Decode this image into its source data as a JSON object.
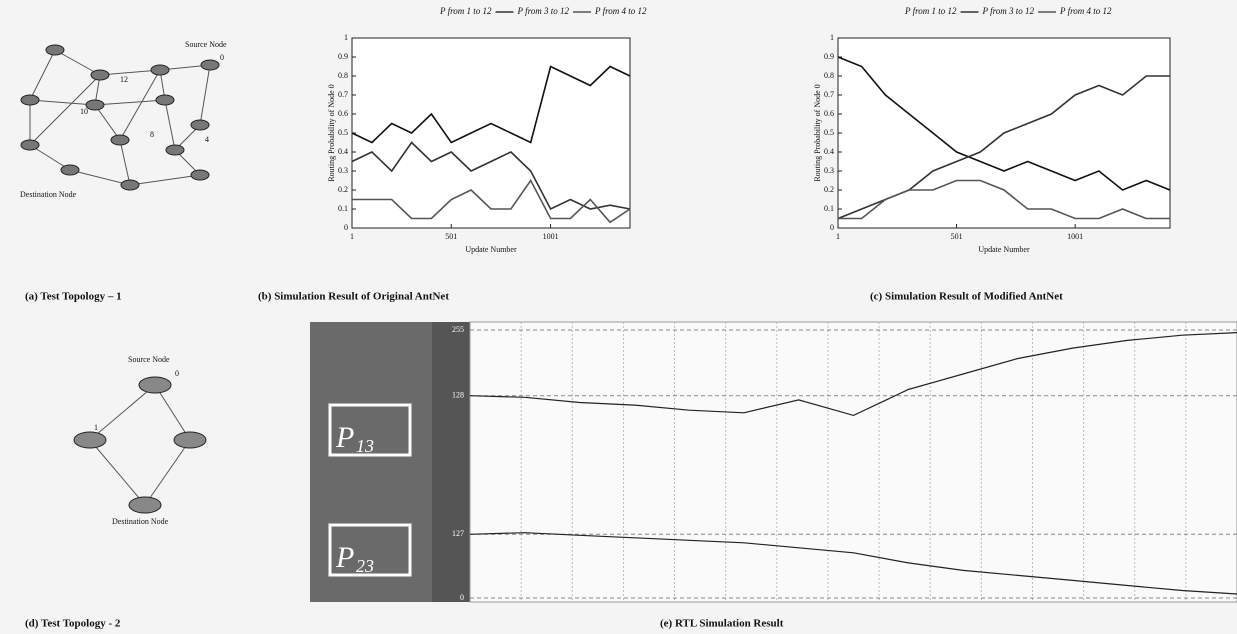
{
  "fig_a": {
    "caption": "(a) Test Topology – 1",
    "labels": [
      "Source Node",
      "0",
      "12",
      "10",
      "8",
      "4",
      "Destination Node"
    ]
  },
  "fig_b": {
    "type": "line",
    "caption": "(b) Simulation Result of Original AntNet",
    "x_label": "Update Number",
    "y_label": "Routing Probability of Node 0",
    "x": [
      1,
      101,
      201,
      301,
      401,
      501,
      601,
      701,
      801,
      901,
      1001,
      1101,
      1201,
      1301,
      1401
    ],
    "xlim": [
      1,
      1401
    ],
    "xticks": [
      1,
      501,
      1001
    ],
    "ylim": [
      0,
      1
    ],
    "yticks": [
      0,
      0.1,
      0.2,
      0.3,
      0.4,
      0.5,
      0.6,
      0.7,
      0.8,
      0.9,
      1
    ],
    "series": [
      {
        "name": "P from 1 to 12",
        "color": "#111111",
        "values": [
          0.5,
          0.45,
          0.55,
          0.5,
          0.6,
          0.45,
          0.5,
          0.55,
          0.5,
          0.45,
          0.85,
          0.8,
          0.75,
          0.85,
          0.8
        ]
      },
      {
        "name": "P from 3 to 12",
        "color": "#333333",
        "values": [
          0.35,
          0.4,
          0.3,
          0.45,
          0.35,
          0.4,
          0.3,
          0.35,
          0.4,
          0.3,
          0.1,
          0.15,
          0.1,
          0.12,
          0.1
        ]
      },
      {
        "name": "P from 4 to 12",
        "color": "#555555",
        "values": [
          0.15,
          0.15,
          0.15,
          0.05,
          0.05,
          0.15,
          0.2,
          0.1,
          0.1,
          0.25,
          0.05,
          0.05,
          0.15,
          0.03,
          0.1
        ]
      }
    ]
  },
  "fig_c": {
    "type": "line",
    "caption": "(c) Simulation Result of Modified AntNet",
    "x_label": "Update Number",
    "y_label": "Routing Probability of Node 0",
    "x": [
      1,
      101,
      201,
      301,
      401,
      501,
      601,
      701,
      801,
      901,
      1001,
      1101,
      1201,
      1301,
      1401
    ],
    "xlim": [
      1,
      1401
    ],
    "xticks": [
      1,
      501,
      1001
    ],
    "ylim": [
      0,
      1
    ],
    "yticks": [
      0,
      0.1,
      0.2,
      0.3,
      0.4,
      0.5,
      0.6,
      0.7,
      0.8,
      0.9,
      1
    ],
    "series": [
      {
        "name": "P from 1 to 12",
        "color": "#111111",
        "values": [
          0.9,
          0.85,
          0.7,
          0.6,
          0.5,
          0.4,
          0.35,
          0.3,
          0.35,
          0.3,
          0.25,
          0.3,
          0.2,
          0.25,
          0.2
        ]
      },
      {
        "name": "P from 3 to 12",
        "color": "#333333",
        "values": [
          0.05,
          0.1,
          0.15,
          0.2,
          0.3,
          0.35,
          0.4,
          0.5,
          0.55,
          0.6,
          0.7,
          0.75,
          0.7,
          0.8,
          0.8
        ]
      },
      {
        "name": "P from 4 to 12",
        "color": "#555555",
        "values": [
          0.05,
          0.05,
          0.15,
          0.2,
          0.2,
          0.25,
          0.25,
          0.2,
          0.1,
          0.1,
          0.05,
          0.05,
          0.1,
          0.05,
          0.05
        ]
      }
    ]
  },
  "fig_d": {
    "caption": "(d) Test Topology - 2",
    "labels": [
      "Source Node",
      "0",
      "1",
      "Destination Node"
    ]
  },
  "fig_e": {
    "caption": "(e) RTL Simulation Result",
    "traces": [
      {
        "label": "P",
        "sub": "13",
        "ylim": [
          0,
          255
        ],
        "yticks": [
          128,
          255
        ],
        "values": [
          128,
          125,
          115,
          110,
          100,
          95,
          120,
          90,
          140,
          170,
          200,
          220,
          235,
          245,
          250
        ]
      },
      {
        "label": "P",
        "sub": "23",
        "ylim": [
          0,
          255
        ],
        "yticks": [
          0,
          127
        ],
        "values": [
          127,
          130,
          125,
          120,
          115,
          110,
          100,
          90,
          70,
          55,
          45,
          35,
          25,
          15,
          8
        ]
      }
    ]
  }
}
